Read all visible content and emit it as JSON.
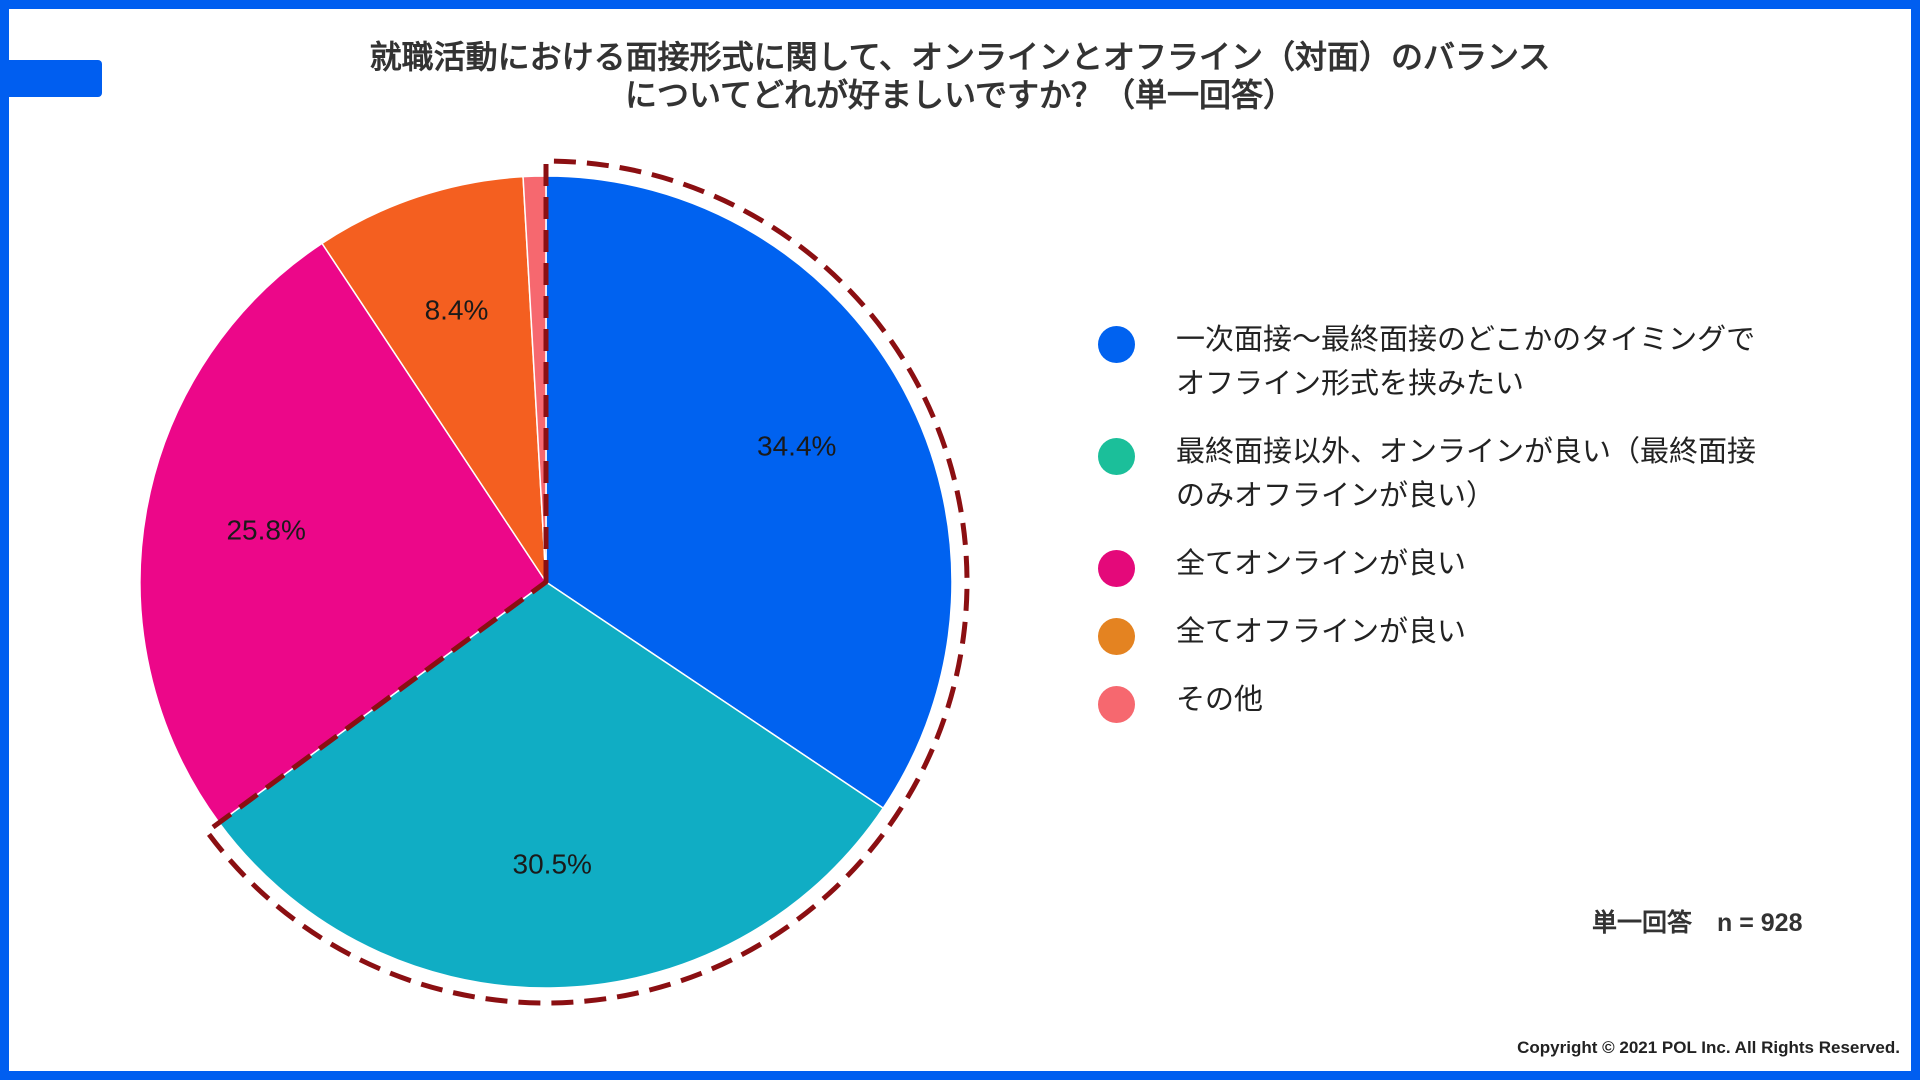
{
  "title_lines": [
    "就職活動における面接形式に関して、オンラインとオフライン（対面）のバランス",
    "についてどれが好ましいですか？（単一回答）"
  ],
  "chart_data": {
    "type": "pie",
    "title": "就職活動における面接形式に関して、オンラインとオフライン（対面）のバランスについてどれが好ましいですか？（単一回答）",
    "slices": [
      {
        "label": "一次面接〜最終面接のどこかのタイミングでオフライン形式を挟みたい",
        "value": 34.4,
        "value_label": "34.4%",
        "slice_color": "#0062f0",
        "legend_color": "#0062f0"
      },
      {
        "label": "最終面接以外、オンラインが良い（最終面接のみオフラインが良い）",
        "value": 30.5,
        "value_label": "30.5%",
        "slice_color": "#10adc4",
        "legend_color": "#1bbf9a"
      },
      {
        "label": "全てオンラインが良い",
        "value": 25.8,
        "value_label": "25.8%",
        "slice_color": "#ec0789",
        "legend_color": "#e4097a"
      },
      {
        "label": "全てオフラインが良い",
        "value": 8.4,
        "value_label": "8.4%",
        "slice_color": "#f45f20",
        "legend_color": "#e48321"
      },
      {
        "label": "その他",
        "value": 0.9,
        "value_label": "",
        "slice_color": "#f6686f",
        "legend_color": "#f6686f"
      }
    ],
    "start": "12 o'clock",
    "direction": "clockwise",
    "legend_position": "right",
    "highlight": {
      "slices": [
        0,
        1
      ],
      "style": "dashed outline",
      "color": "#8b0f12"
    }
  },
  "sample_note": "単一回答　n = 928",
  "copyright": "Copyright © 2021 POL Inc. All Rights Reserved."
}
